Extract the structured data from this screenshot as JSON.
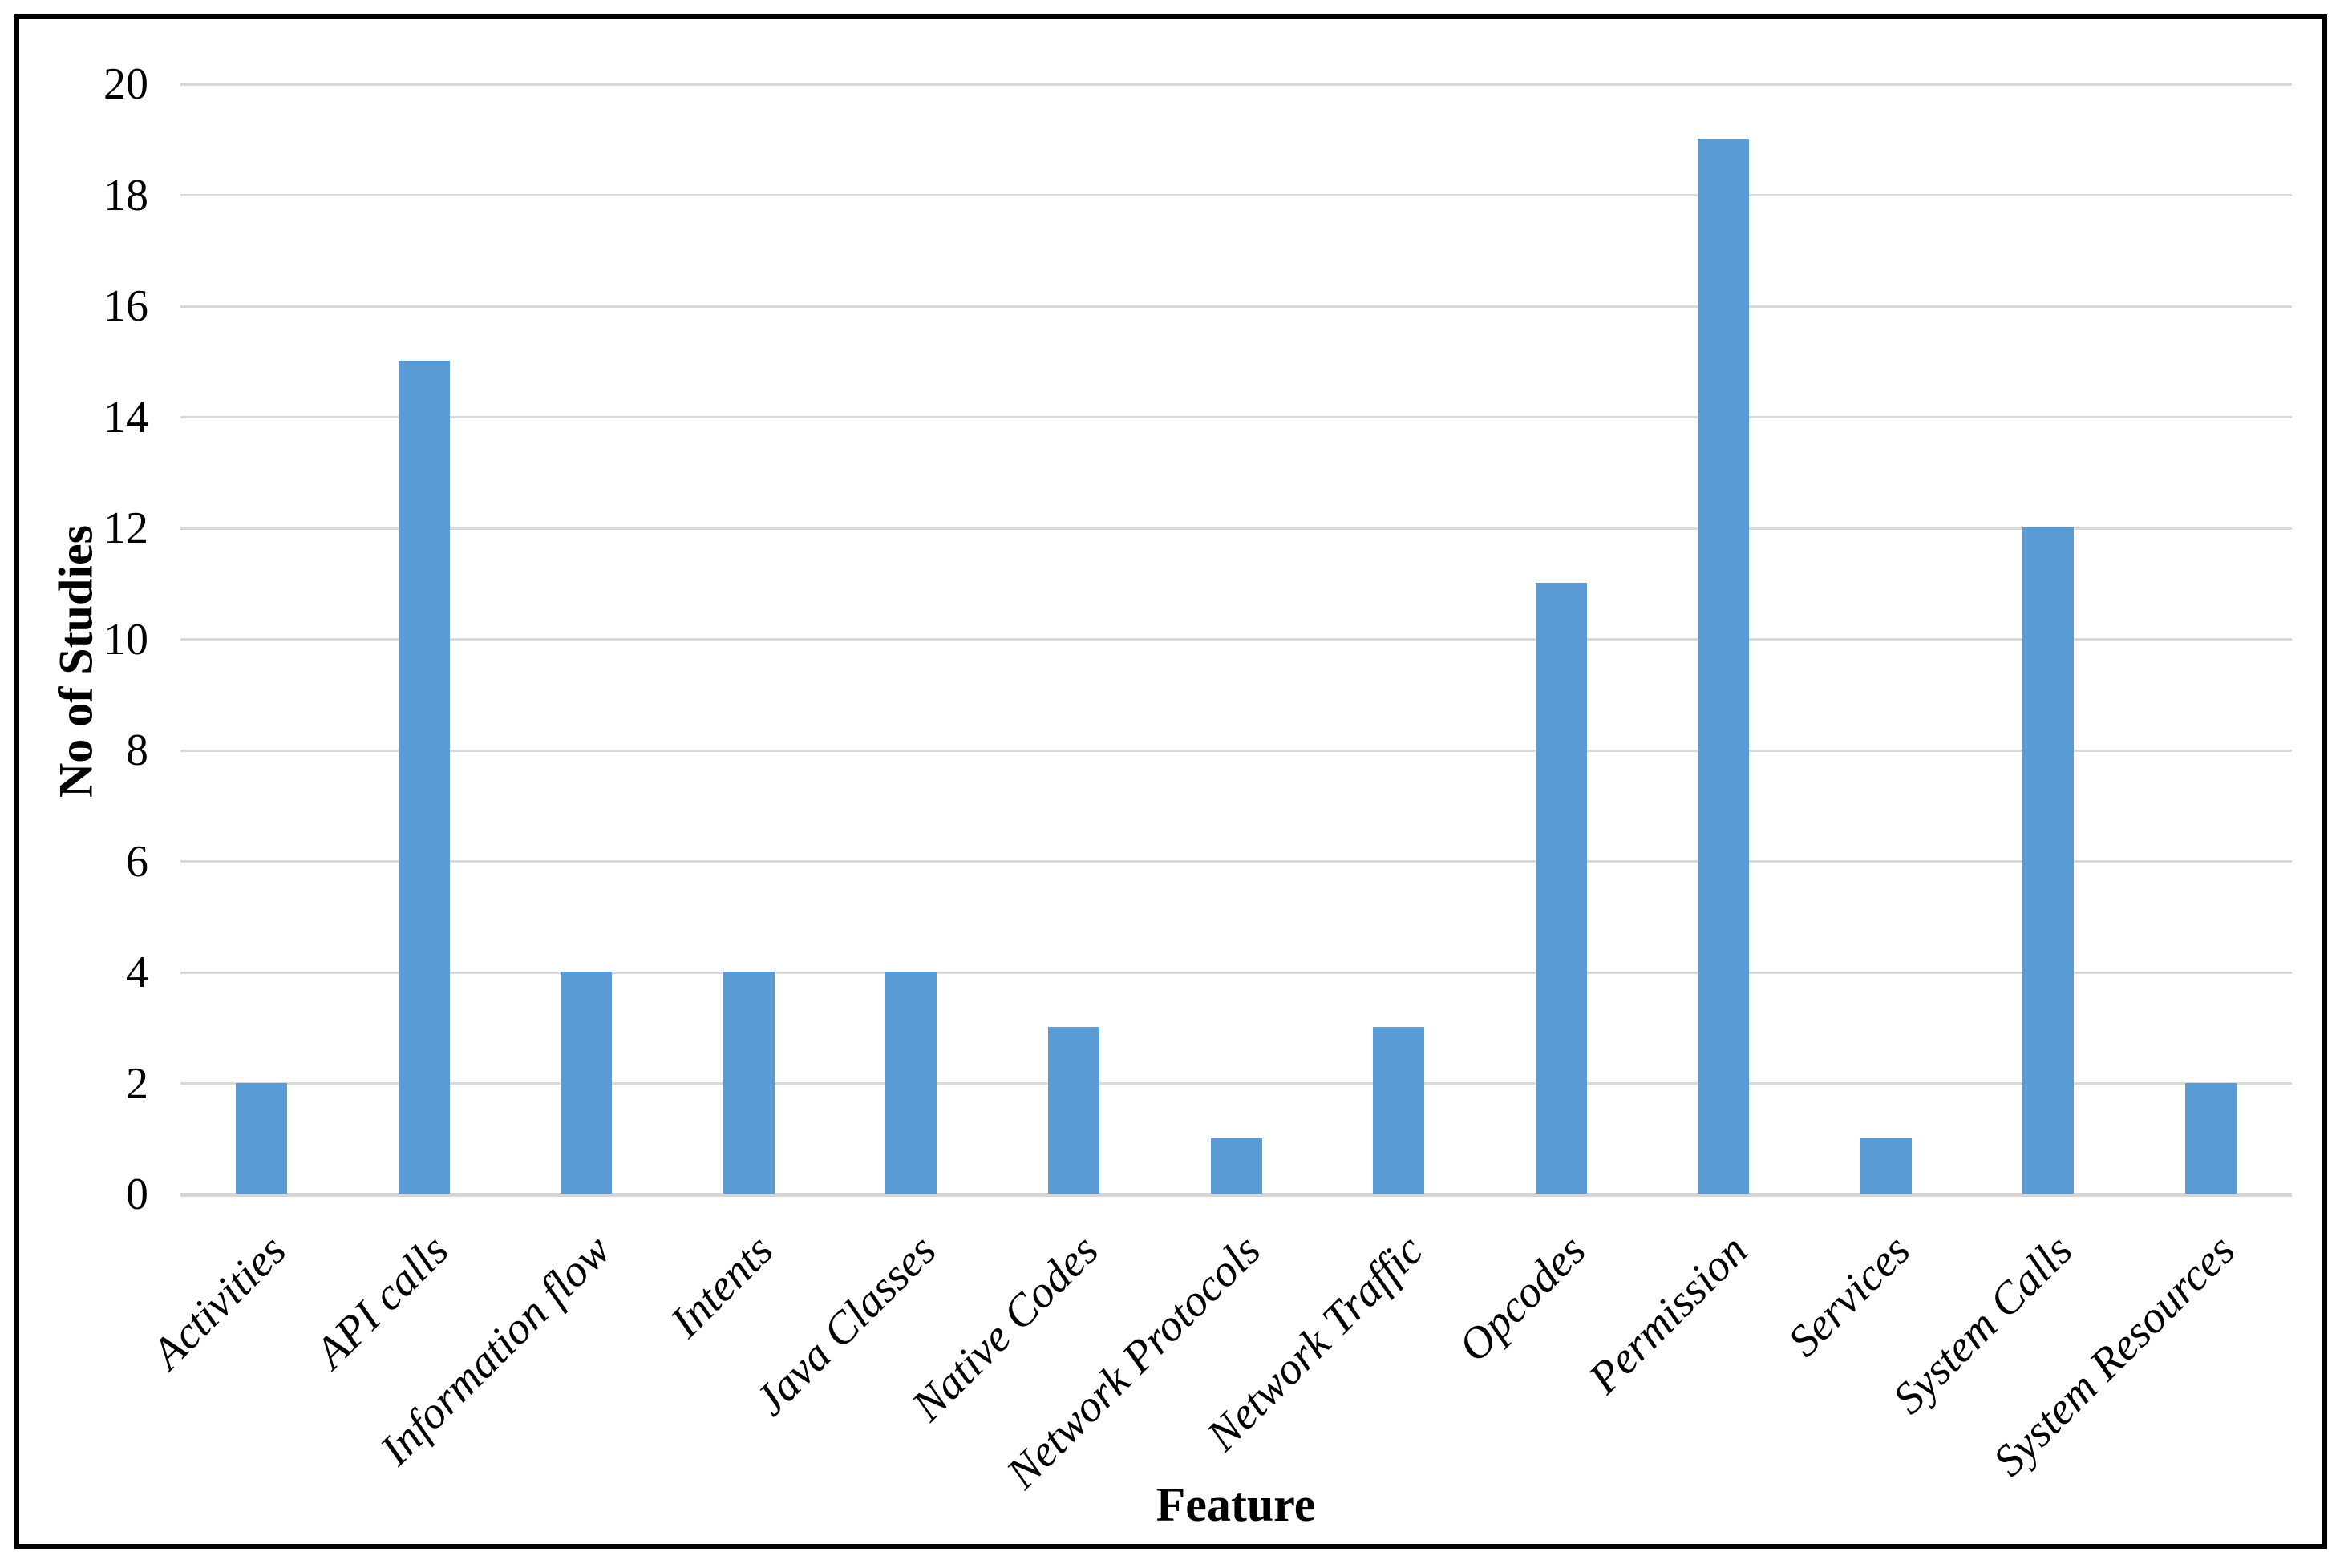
{
  "chart_data": {
    "type": "bar",
    "title": "",
    "xlabel": "Feature",
    "ylabel": "No of Studies",
    "categories": [
      "Activities",
      "API calls",
      "Information flow",
      "Intents",
      "Java Classes",
      "Native Codes",
      "Network Protocols",
      "Network Traffic",
      "Opcodes",
      "Permission",
      "Services",
      "System Calls",
      "System Resources"
    ],
    "values": [
      2,
      15,
      4,
      4,
      4,
      3,
      1,
      3,
      11,
      19,
      1,
      12,
      2
    ],
    "ylim": [
      0,
      20
    ],
    "yticks": [
      0,
      2,
      4,
      6,
      8,
      10,
      12,
      14,
      16,
      18,
      20
    ],
    "grid": true,
    "legend": "none",
    "colors": {
      "bar": "#5B9BD5",
      "gridline": "#D9D9D9",
      "axis_line": "#D6D6D6",
      "frame": "#000000",
      "text": "#000000"
    }
  }
}
